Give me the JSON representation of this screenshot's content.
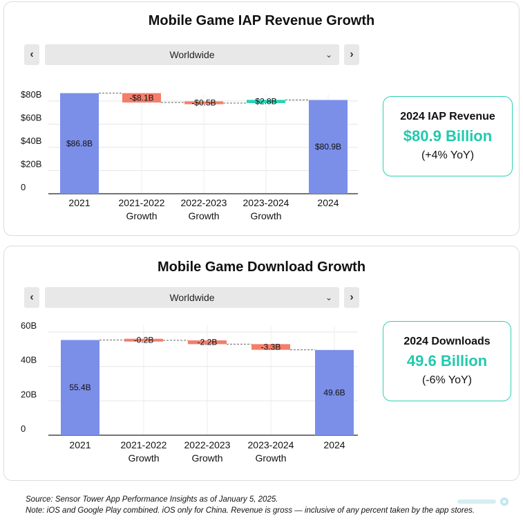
{
  "cards": [
    {
      "title": "Mobile Game IAP Revenue Growth",
      "region": "Worldwide",
      "summary": {
        "title": "2024 IAP Revenue",
        "value": "$80.9 Billion",
        "change": "(+4% YoY)"
      }
    },
    {
      "title": "Mobile Game Download Growth",
      "region": "Worldwide",
      "summary": {
        "title": "2024 Downloads",
        "value": "49.6 Billion",
        "change": "(-6% YoY)"
      }
    }
  ],
  "nav": {
    "prev": "‹",
    "next": "›",
    "dropdown": "⌄"
  },
  "colors": {
    "total": "#7b8ee8",
    "decrease": "#f47e6a",
    "increase": "#29d3b5",
    "accent": "#22c9ad"
  },
  "chart_data": [
    {
      "type": "bar",
      "subtype": "waterfall",
      "categories": [
        "2021",
        "2021-2022\nGrowth",
        "2022-2023\nGrowth",
        "2023-2024\nGrowth",
        "2024"
      ],
      "values": [
        86.8,
        -8.1,
        -0.5,
        2.8,
        80.9
      ],
      "kinds": [
        "total",
        "delta",
        "delta",
        "delta",
        "total"
      ],
      "labels": [
        "$86.8B",
        "-$8.1B",
        "-$0.5B",
        "$2.8B",
        "$80.9B"
      ],
      "yticks": [
        0,
        20,
        40,
        60,
        80
      ],
      "ytick_labels": [
        "0",
        "$20B",
        "$40B",
        "$60B",
        "$80B"
      ],
      "ylim": [
        0,
        90
      ],
      "grid": true
    },
    {
      "type": "bar",
      "subtype": "waterfall",
      "categories": [
        "2021",
        "2021-2022\nGrowth",
        "2022-2023\nGrowth",
        "2023-2024\nGrowth",
        "2024"
      ],
      "values": [
        55.4,
        -0.2,
        -2.2,
        -3.3,
        49.6
      ],
      "kinds": [
        "total",
        "delta",
        "delta",
        "delta",
        "total"
      ],
      "labels": [
        "55.4B",
        "-0.2B",
        "-2.2B",
        "-3.3B",
        "49.6B"
      ],
      "yticks": [
        0,
        20,
        40,
        60
      ],
      "ytick_labels": [
        "0",
        "20B",
        "40B",
        "60B"
      ],
      "ylim": [
        0,
        60
      ],
      "grid": true
    }
  ],
  "footer": {
    "source": "Source: Sensor Tower App Performance Insights as of January 5, 2025.",
    "note": "Note: iOS and Google Play combined. iOS only for China. Revenue is gross — inclusive of any percent taken by the app stores."
  }
}
